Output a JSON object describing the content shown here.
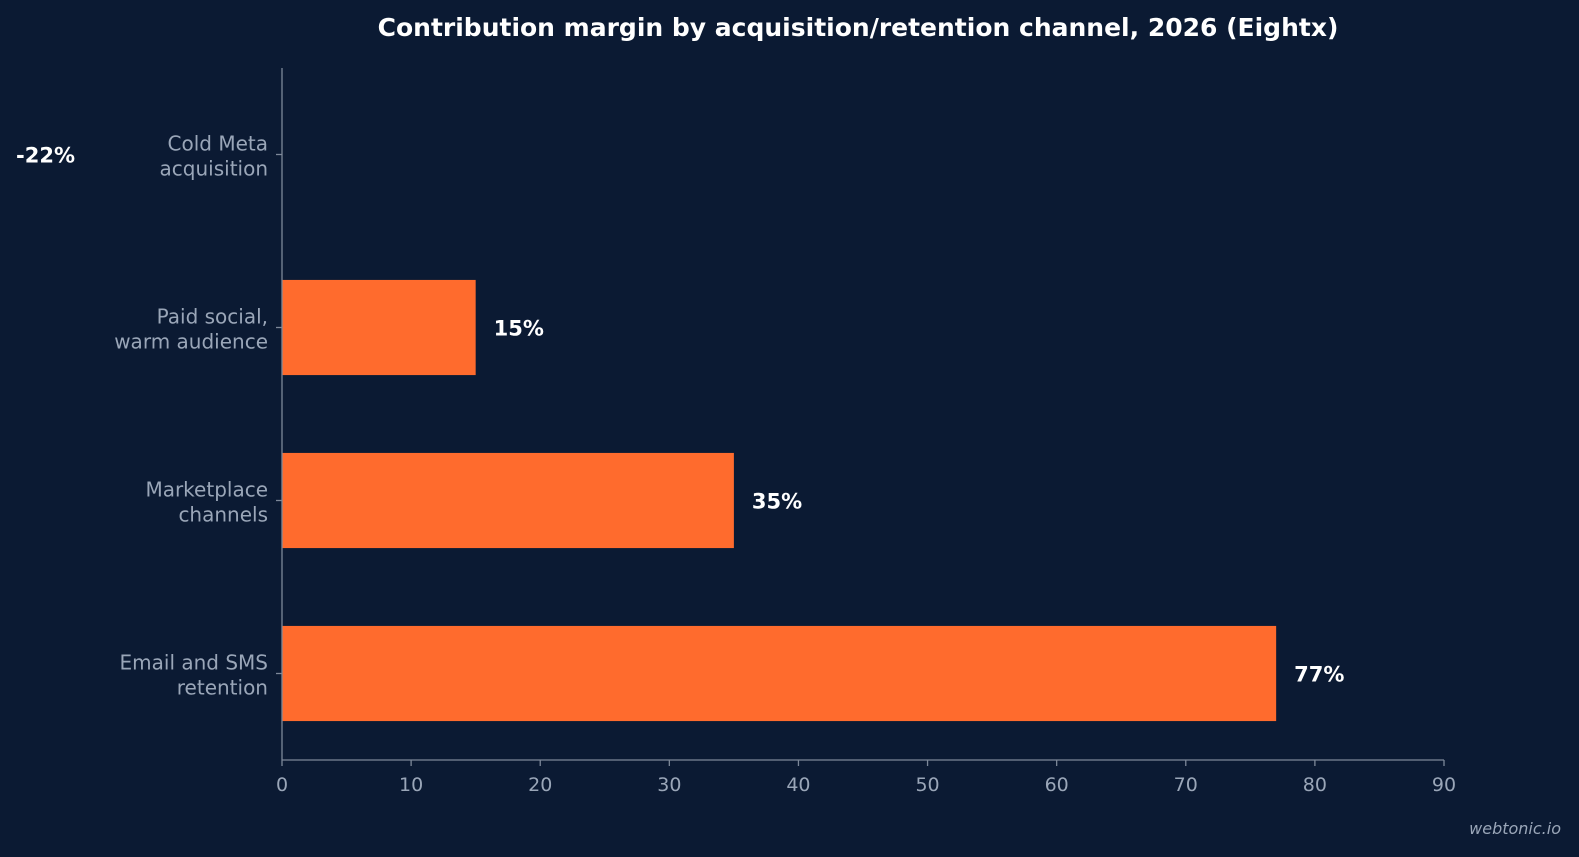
{
  "chart_data": {
    "type": "bar",
    "orientation": "horizontal",
    "title": "Contribution margin by acquisition/retention channel, 2026 (Eightx)",
    "categories": [
      [
        "Cold Meta",
        "acquisition"
      ],
      [
        "Paid social,",
        "warm audience"
      ],
      [
        "Marketplace",
        "channels"
      ],
      [
        "Email and SMS",
        "retention"
      ]
    ],
    "values": [
      -22,
      15,
      35,
      77
    ],
    "value_labels": [
      "-22%",
      "15%",
      "35%",
      "77%"
    ],
    "xlim": [
      0,
      90
    ],
    "xticks": [
      0,
      10,
      20,
      30,
      40,
      50,
      60,
      70,
      80,
      90
    ],
    "xlabel": "",
    "ylabel": "",
    "grid": false,
    "legend": "none",
    "bar_color": "#ff6b2d",
    "background_color": "#0b1a33"
  },
  "watermark": "webtonic.io"
}
